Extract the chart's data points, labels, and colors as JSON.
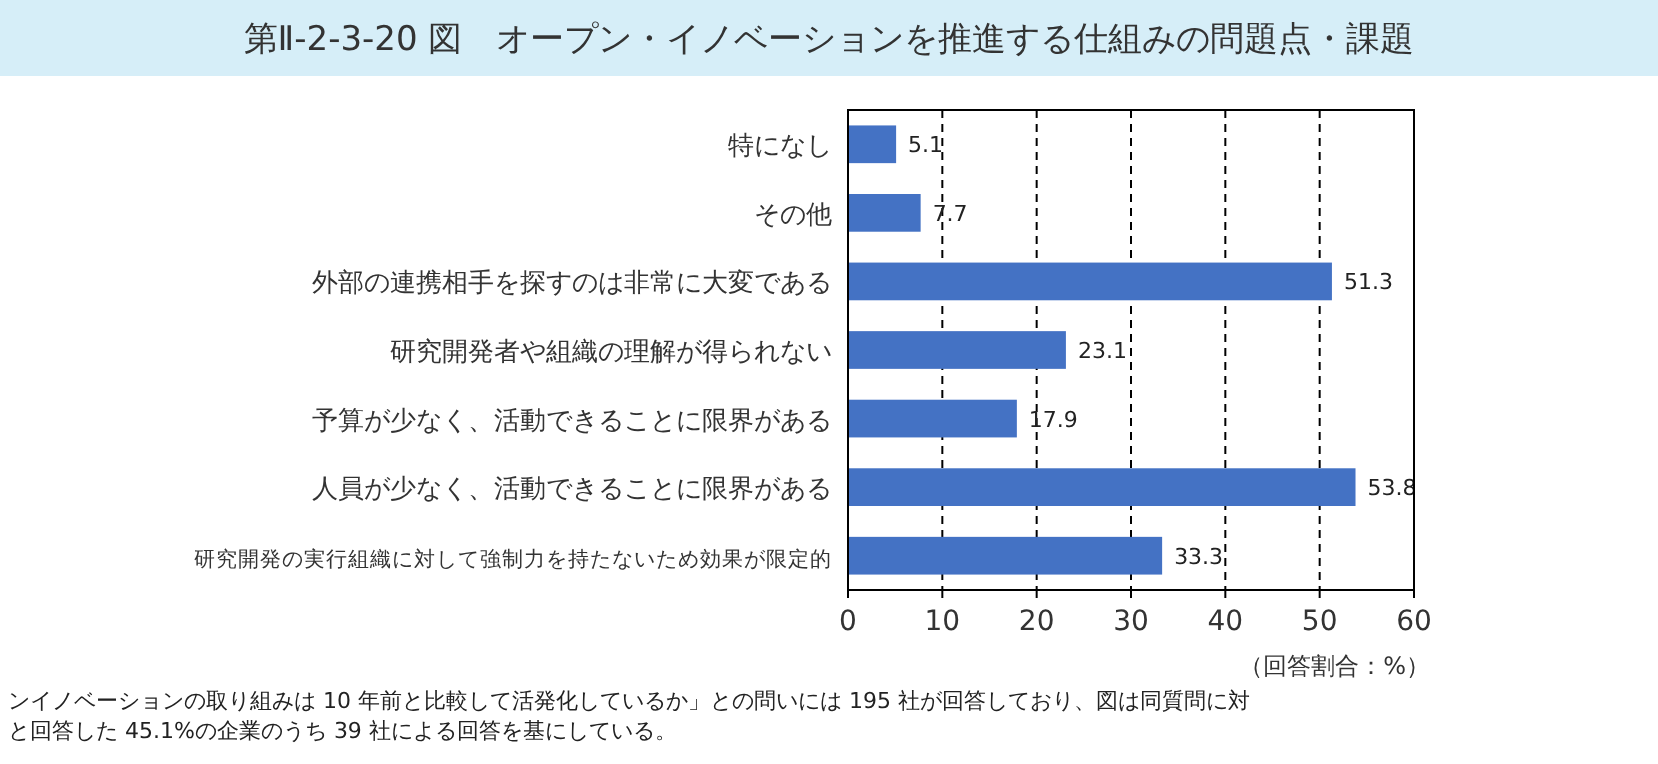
{
  "chart_data": {
    "type": "bar",
    "orientation": "horizontal",
    "title": "第Ⅱ-2-3-20 図　オープン・イノベーションを推進する仕組みの問題点・課題",
    "categories": [
      "特になし",
      "その他",
      "外部の連携相手を探すのは非常に大変である",
      "研究開発者や組織の理解が得られない",
      "予算が少なく、活動できることに限界がある",
      "人員が少なく、活動できることに限界がある",
      "研究開発の実行組織に対して強制力を持たないため効果が限定的"
    ],
    "values": [
      5.1,
      7.7,
      51.3,
      23.1,
      17.9,
      53.8,
      33.3
    ],
    "color": "#4472c4",
    "xlim": [
      0,
      60
    ],
    "xticks": [
      0,
      10,
      20,
      30,
      40,
      50,
      60
    ],
    "grid": "x",
    "data_labels": true,
    "xlabel": "（回答割合：%）",
    "annotations": [
      "ンイノベーションの取り組みは 10 年前と比較して活発化しているか」との問いには 195 社が回答しており、図は同質問に対",
      "と回答した 45.1%の企業のうち 39 社による回答を基にしている。"
    ]
  }
}
